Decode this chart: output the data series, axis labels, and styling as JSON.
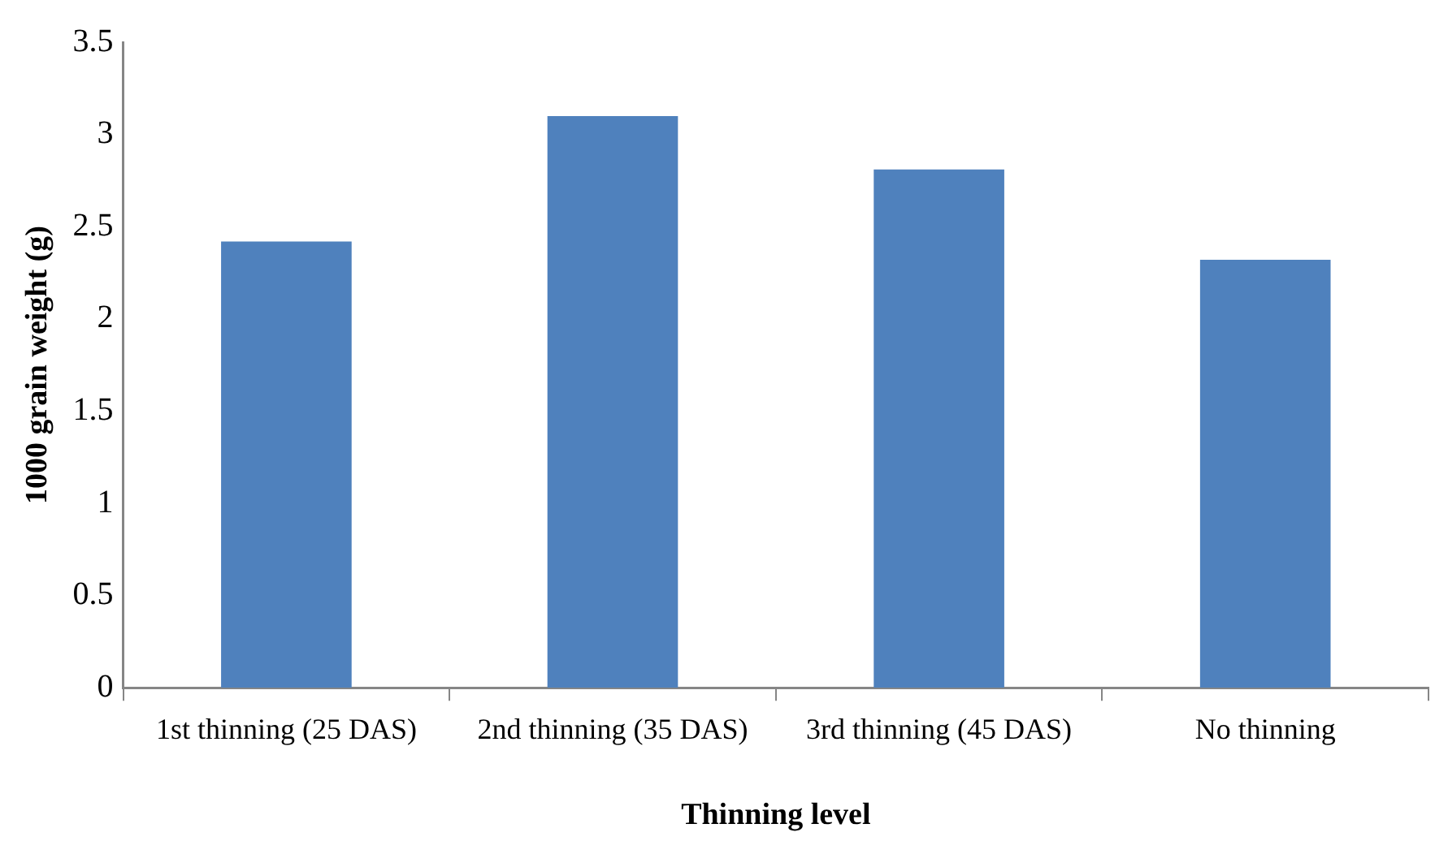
{
  "chart_data": {
    "type": "bar",
    "xlabel": "Thinning level",
    "ylabel": "1000 grain weight (g)",
    "categories": [
      "1st thinning (25 DAS)",
      "2nd thinning (35 DAS)",
      "3rd thinning (45 DAS)",
      "No thinning"
    ],
    "values": [
      2.42,
      3.1,
      2.81,
      2.32
    ],
    "color": "#4f81bd",
    "ylim": [
      0,
      3.5
    ],
    "yticks": [
      0,
      0.5,
      1,
      1.5,
      2,
      2.5,
      3,
      3.5
    ],
    "grid": false,
    "legend": false
  }
}
